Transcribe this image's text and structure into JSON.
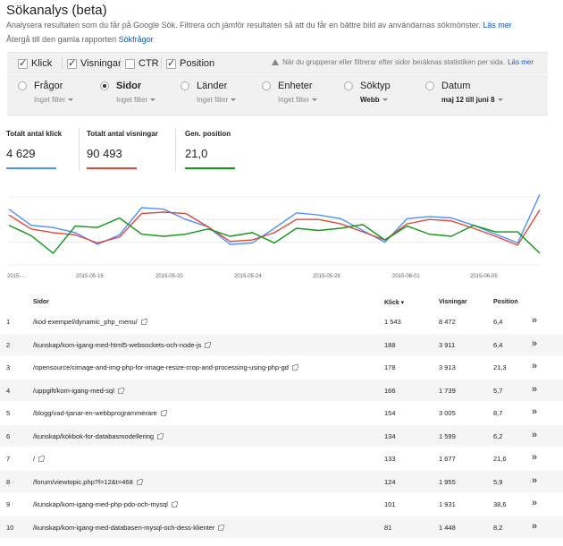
{
  "header": {
    "title": "Sökanalys (beta)",
    "description": "Analysera resultaten som du får på Google Sök. Filtrera och jämför resultaten så att du får en bättre bild av användarnas sökmönster.",
    "learn_more": "Läs mer",
    "back_text": "Återgå till den gamla rapporten",
    "back_link": "Sökfrågor"
  },
  "toolbar": {
    "metrics": [
      {
        "label": "Klick",
        "checked": true
      },
      {
        "label": "Visningar",
        "checked": true
      },
      {
        "label": "CTR",
        "checked": false
      },
      {
        "label": "Position",
        "checked": true
      }
    ],
    "notice": "När du grupperar eller filtrerar efter sidor beräknas statistiken per sida.",
    "notice_link": "Läs mer"
  },
  "dimensions": [
    {
      "label": "Frågor",
      "sub": "Inget filter",
      "selected": false
    },
    {
      "label": "Sidor",
      "sub": "Inget filter",
      "selected": true
    },
    {
      "label": "Länder",
      "sub": "Inget filter",
      "selected": false
    },
    {
      "label": "Enheter",
      "sub": "Inget filter",
      "selected": false
    },
    {
      "label": "Söktyp",
      "sub": "Webb",
      "selected": false
    },
    {
      "label": "Datum",
      "sub": "maj 12 till juni 8",
      "selected": false
    }
  ],
  "stats": [
    {
      "label": "Totalt antal klick",
      "value": "4 629",
      "color": "#4d90fe"
    },
    {
      "label": "Totalt antal visningar",
      "value": "90 493",
      "color": "#dd4b39"
    },
    {
      "label": "Gen. position",
      "value": "21,0",
      "color": "#109618"
    }
  ],
  "chart_data": {
    "type": "line",
    "x_labels": [
      "2015-...",
      "2015-05-16",
      "2015-05-20",
      "2015-05-24",
      "2015-05-28",
      "2015-06-01",
      "2015-06-05"
    ],
    "grid": true,
    "series": [
      {
        "name": "Klick",
        "color": "#4d90fe",
        "values": [
          0.76,
          0.54,
          0.51,
          0.44,
          0.28,
          0.41,
          0.78,
          0.76,
          0.62,
          0.52,
          0.28,
          0.3,
          0.5,
          0.71,
          0.68,
          0.63,
          0.47,
          0.31,
          0.63,
          0.66,
          0.64,
          0.54,
          0.42,
          0.3,
          0.96
        ]
      },
      {
        "name": "Visningar",
        "color": "#dd4b39",
        "values": [
          0.68,
          0.49,
          0.44,
          0.41,
          0.3,
          0.38,
          0.7,
          0.72,
          0.7,
          0.52,
          0.32,
          0.34,
          0.44,
          0.62,
          0.62,
          0.56,
          0.45,
          0.34,
          0.56,
          0.62,
          0.6,
          0.5,
          0.39,
          0.27,
          0.75
        ]
      },
      {
        "name": "Position",
        "color": "#109618",
        "values": [
          0.54,
          0.4,
          0.16,
          0.53,
          0.51,
          0.64,
          0.42,
          0.39,
          0.42,
          0.49,
          0.39,
          0.44,
          0.3,
          0.5,
          0.47,
          0.5,
          0.55,
          0.34,
          0.53,
          0.42,
          0.39,
          0.54,
          0.45,
          0.45,
          0.16
        ]
      }
    ]
  },
  "table": {
    "headers": {
      "sidor": "Sidor",
      "klick": "Klick ▾",
      "visningar": "Visningar",
      "position": "Position"
    },
    "rows": [
      {
        "num": "1",
        "page": "/kod-exempel/dynamic_php_menu/",
        "klick": "1 543",
        "visningar": "8 472",
        "position": "6,4"
      },
      {
        "num": "2",
        "page": "/kunskap/kom-igang-med-html5-websockets-och-node-js",
        "klick": "188",
        "visningar": "3 911",
        "position": "6,4"
      },
      {
        "num": "3",
        "page": "/opensource/cimage-and-img-php-for-image-resize-crop-and-processing-using-php-gd",
        "klick": "178",
        "visningar": "3 913",
        "position": "21,3"
      },
      {
        "num": "4",
        "page": "/uppgift/kom-igang-med-sql",
        "klick": "166",
        "visningar": "1 739",
        "position": "5,7"
      },
      {
        "num": "5",
        "page": "/blogg/vad-tjanar-en-webbprogrammerare",
        "klick": "154",
        "visningar": "3 005",
        "position": "8,7"
      },
      {
        "num": "6",
        "page": "/kunskap/kokbok-for-databasmodellering",
        "klick": "134",
        "visningar": "1 599",
        "position": "6,2"
      },
      {
        "num": "7",
        "page": "/",
        "klick": "133",
        "visningar": "1 677",
        "position": "21,6"
      },
      {
        "num": "8",
        "page": "/forum/viewtopic.php?f=12&t=468",
        "klick": "124",
        "visningar": "1 955",
        "position": "5,9"
      },
      {
        "num": "9",
        "page": "/kunskap/kom-igang-med-php-pdo-och-mysql",
        "klick": "101",
        "visningar": "1 931",
        "position": "38,6"
      },
      {
        "num": "10",
        "page": "/kunskap/kom-igang-med-databasen-mysql-och-dess-klienter",
        "klick": "81",
        "visningar": "1 448",
        "position": "8,2"
      }
    ]
  }
}
